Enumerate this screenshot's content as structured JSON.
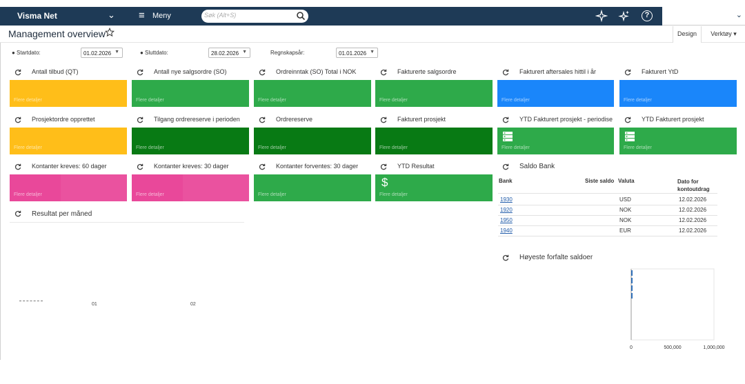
{
  "topbar": {
    "company": "Visma Net",
    "menu_label": "Meny",
    "search_placeholder": "Søk (Alt+S)"
  },
  "page": {
    "title": "Management overview",
    "design_label": "Design",
    "tools_label": "Verktøy ▾"
  },
  "filters": {
    "start_label": "● Startdato:",
    "start_value": "01.02.2026",
    "end_label": "● Sluttdato:",
    "end_value": "28.02.2026",
    "fiscal_label": "Regnskapsår:",
    "fiscal_value": "01.01.2026"
  },
  "tile_footer": "Flere detaljer",
  "tiles_row1": [
    {
      "title": "Antall tilbud (QT)",
      "color": "#ffbe19"
    },
    {
      "title": "Antall nye salgsordre (SO)",
      "color": "#2eaa4a"
    },
    {
      "title": "Ordreinntak (SO) Total i NOK",
      "color": "#2eaa4a"
    },
    {
      "title": "Fakturerte salgsordre",
      "color": "#2eaa4a"
    },
    {
      "title": "Fakturert aftersales hittil i år",
      "color": "#1a86fa"
    },
    {
      "title": "Fakturert YtD",
      "color": "#1a86fa"
    }
  ],
  "tiles_row2": [
    {
      "title": "Prosjektordre opprettet",
      "color": "#ffbe19"
    },
    {
      "title": "Tilgang ordrereserve i perioden",
      "color": "#087a14"
    },
    {
      "title": "Ordrereserve",
      "color": "#087a14"
    },
    {
      "title": "Fakturert prosjekt",
      "color": "#087a14"
    },
    {
      "title": "YTD Fakturert prosjekt - periodisert",
      "color": "#2eaa4a"
    },
    {
      "title": "YTD Fakturert prosjekt",
      "color": "#2eaa4a"
    }
  ],
  "tiles_row3": [
    {
      "title": "Kontanter kreves: 60 dager",
      "color": "#e9489a"
    },
    {
      "title": "Kontanter kreves: 30 dager",
      "color": "#e9489a"
    },
    {
      "title": "Kontanter forventes: 30 dager",
      "color": "#2eaa4a"
    },
    {
      "title": "YTD Resultat",
      "color": "#2eaa4a"
    }
  ],
  "result_chart": {
    "title": "Resultat per måned",
    "tick_labels": [
      "01",
      "02"
    ]
  },
  "saldo_bank": {
    "title": "Saldo Bank",
    "headers": [
      "Bank",
      "Siste saldo",
      "Valuta",
      "Dato for kontoutdrag"
    ],
    "rows": [
      {
        "bank": "1930",
        "currency": "USD",
        "date": "12.02.2026"
      },
      {
        "bank": "1920",
        "currency": "NOK",
        "date": "12.02.2026"
      },
      {
        "bank": "1950",
        "currency": "NOK",
        "date": "12.02.2026"
      },
      {
        "bank": "1940",
        "currency": "EUR",
        "date": "12.02.2026"
      }
    ]
  },
  "overdue": {
    "title": "Høyeste forfalte saldoer"
  },
  "chart_data": {
    "type": "bar",
    "title": "Høyeste forfalte saldoer",
    "xlabel": "",
    "ylabel": "",
    "xlim": [
      0,
      1000000
    ],
    "x_ticks": [
      "0",
      "500,000",
      "1,000,000"
    ],
    "categories": [
      "",
      "",
      "",
      ""
    ],
    "values": [
      12000,
      9000,
      7000,
      5000
    ]
  }
}
